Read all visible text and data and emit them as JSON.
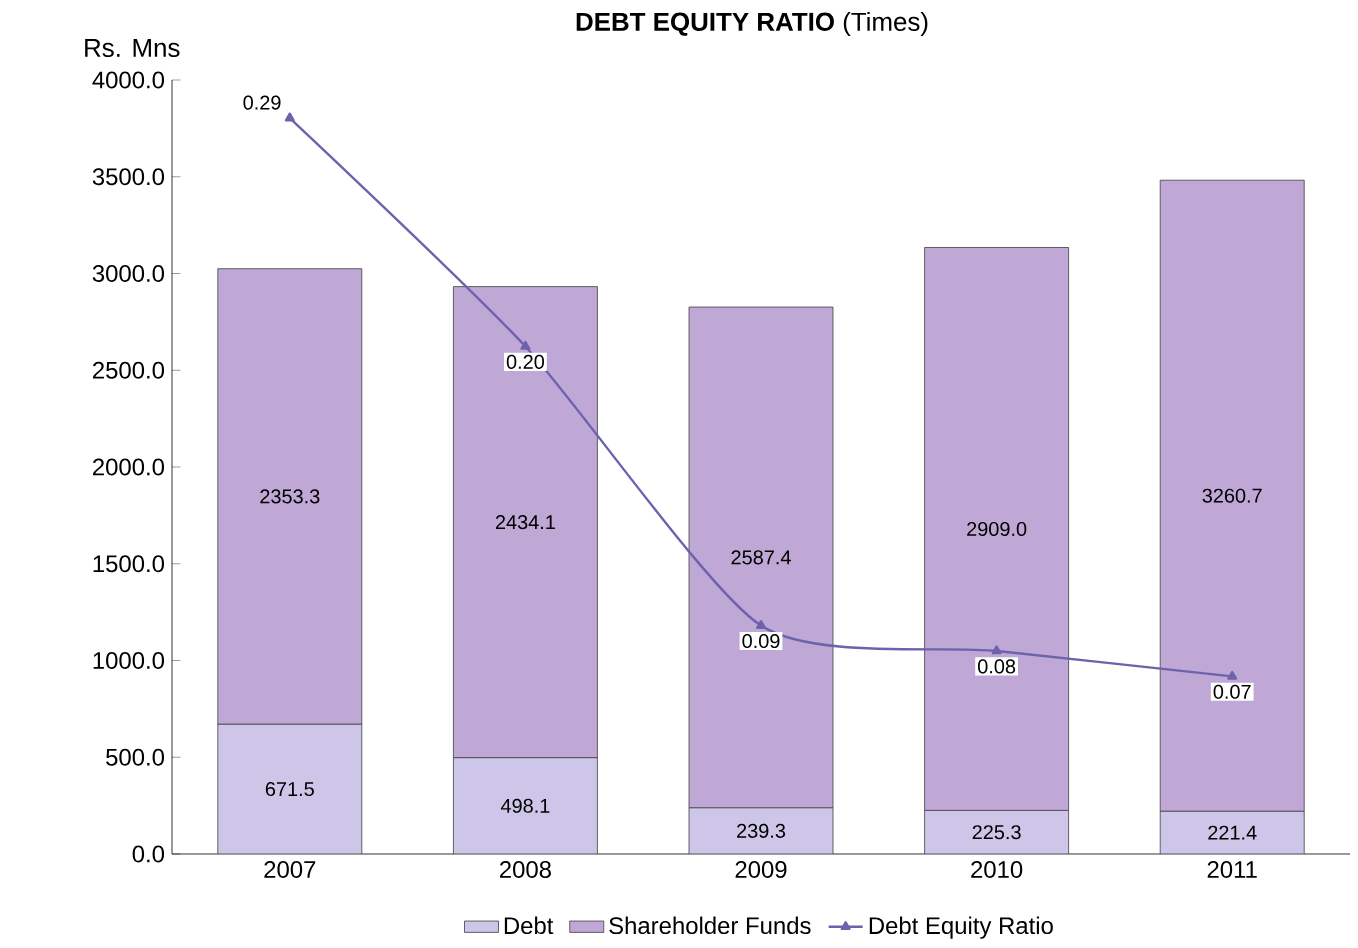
{
  "chart_data": {
    "type": "bar",
    "stacked": true,
    "title": "**DEBT EQUITY RATIO** (Times)",
    "ylabel": "Rs. Mns",
    "categories": [
      "2007",
      "2008",
      "2009",
      "2010",
      "2011"
    ],
    "ylim": [
      0,
      4000
    ],
    "yticks": [
      {
        "value": 0,
        "label": "0.0"
      },
      {
        "value": 500,
        "label": "500.0"
      },
      {
        "value": 1000,
        "label": "1000.0"
      },
      {
        "value": 1500,
        "label": "1500.0"
      },
      {
        "value": 2000,
        "label": "2000.0"
      },
      {
        "value": 2500,
        "label": "2500.0"
      },
      {
        "value": 3000,
        "label": "3000.0"
      },
      {
        "value": 3500,
        "label": "3500.0"
      },
      {
        "value": 4000,
        "label": "4000.0"
      }
    ],
    "y2lim": [
      0,
      0.305
    ],
    "tick_labels": "xy",
    "series": [
      {
        "name": "Debt",
        "color": "#cdc6e8",
        "values": [
          671.5,
          498.1,
          239.3,
          225.3,
          221.4
        ],
        "value_labels": [
          "671.5",
          "498.1",
          "239.3",
          "225.3",
          "221.4"
        ]
      },
      {
        "name": "Shareholder Funds",
        "color": "#c0a8d6",
        "values": [
          2353.3,
          2434.1,
          2587.4,
          2909.0,
          3260.7
        ],
        "value_labels": [
          "2353.3",
          "2434.1",
          "2587.4",
          "2909.0",
          "3260.7"
        ]
      },
      {
        "name": "Debt Equity Ratio",
        "type": "line",
        "axis": "y2",
        "color": "#6c63ac",
        "values": [
          0.29,
          0.2,
          0.09,
          0.08,
          0.07
        ],
        "value_labels": [
          "0.29",
          "0.20",
          "0.09",
          "0.08",
          "0.07"
        ]
      }
    ],
    "marker": "triangle",
    "legend": "bottom",
    "grid": false
  }
}
